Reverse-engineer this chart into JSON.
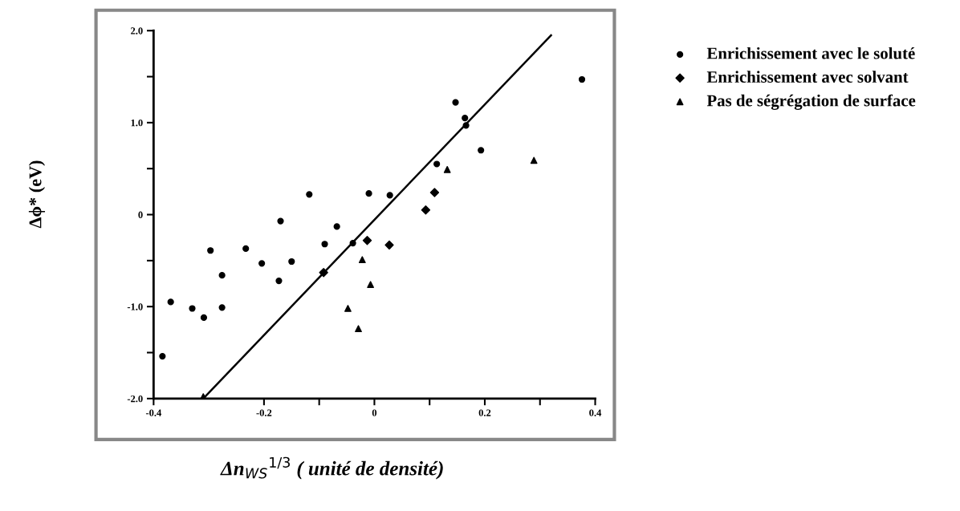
{
  "chart_data": {
    "type": "scatter",
    "xlabel": "Δn$_{WS}$$^{1/3}$ ( unité de densité)",
    "ylabel": "Δϕ* (eV)",
    "series": [
      {
        "name": "Enrichissement avec le soluté",
        "color": "#000000",
        "marker": "circle",
        "x": [
          -0.118,
          -0.17,
          -0.068,
          -0.297,
          -0.233,
          -0.204,
          -0.15,
          -0.09,
          -0.276,
          -0.173,
          -0.369,
          -0.33,
          -0.309,
          -0.276,
          -0.384,
          0.193,
          0.113,
          -0.01,
          0.028,
          -0.039,
          0.376,
          0.147,
          0.164,
          0.166
        ],
        "values": [
          0.22,
          -0.07,
          -0.13,
          -0.39,
          -0.37,
          -0.53,
          -0.51,
          -0.32,
          -0.66,
          -0.72,
          -0.95,
          -1.02,
          -1.12,
          -1.01,
          -1.54,
          0.7,
          0.55,
          0.23,
          0.21,
          -0.31,
          1.47,
          1.22,
          1.05,
          0.97
        ]
      },
      {
        "name": "Enrichissement avec solvant",
        "color": "#000000",
        "marker": "diamond",
        "x": [
          -0.092,
          0.109,
          0.093,
          -0.013,
          0.027
        ],
        "values": [
          -0.63,
          0.24,
          0.05,
          -0.28,
          -0.33
        ]
      },
      {
        "name": "Pas de ségrégation de surface",
        "color": "#000000",
        "marker": "triangle",
        "x": [
          0.289,
          0.132,
          -0.022,
          -0.007,
          -0.048,
          -0.029,
          -0.31
        ],
        "values": [
          0.59,
          0.49,
          -0.49,
          -0.76,
          -1.02,
          -1.24,
          -1.98
        ]
      },
      {
        "type": "line",
        "color": "#000000",
        "x": [
          -0.31,
          0.32
        ],
        "values": [
          -2.0,
          1.95
        ]
      }
    ],
    "xlim": [
      -0.4,
      0.4
    ],
    "ylim": [
      -2.0,
      2.0
    ],
    "xticks": [
      {
        "value": -0.4,
        "label": "-0.4"
      },
      {
        "value": -0.2,
        "label": "-0.2"
      },
      {
        "value": -0.1,
        "label": null
      },
      0,
      {
        "value": 0.1,
        "label": null
      },
      {
        "value": 0.2,
        "label": "0.2"
      },
      {
        "value": 0.3,
        "label": null
      },
      {
        "value": 0.4,
        "label": "0.4"
      }
    ],
    "yticks": [
      {
        "value": -2.0,
        "label": "-2.0"
      },
      {
        "value": -1.5,
        "label": null
      },
      {
        "value": -1.0,
        "label": "-1.0"
      },
      {
        "value": -0.5,
        "label": null
      },
      0,
      {
        "value": 0.5,
        "label": null
      },
      {
        "value": 1.0,
        "label": "1.0"
      },
      {
        "value": 1.5,
        "label": null
      },
      {
        "value": 2.0,
        "label": "2.0"
      }
    ],
    "grid": false,
    "legend": "right"
  }
}
